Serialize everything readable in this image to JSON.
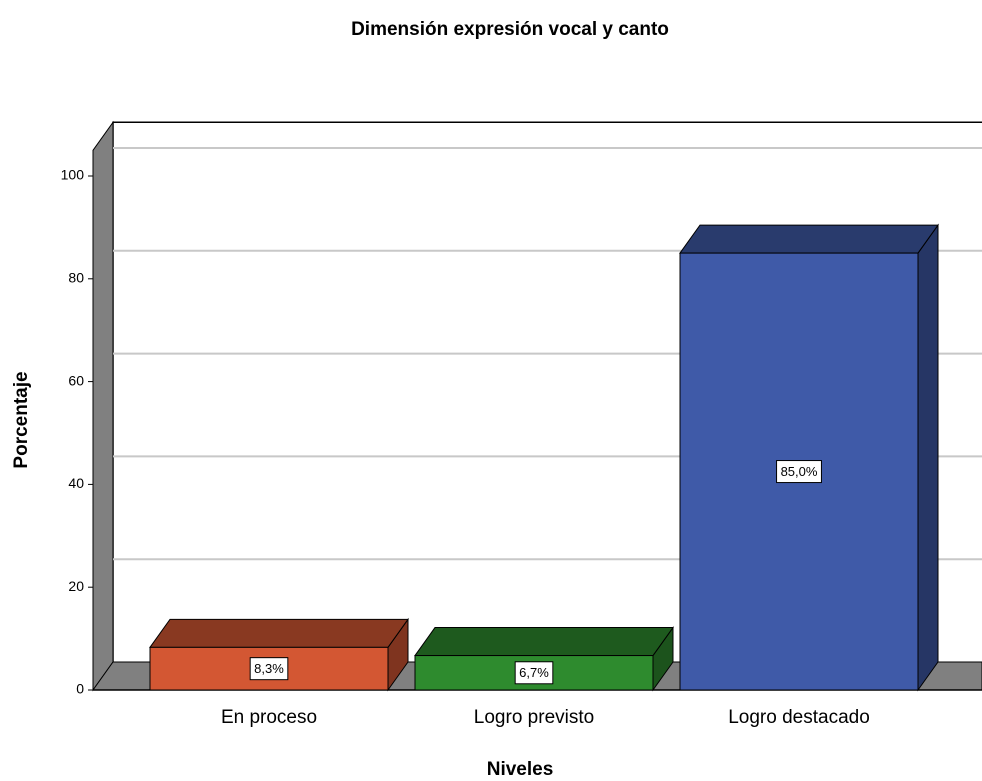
{
  "chart_data": {
    "type": "bar3d",
    "title": "Dimensión expresión vocal y canto",
    "x_label": "Niveles",
    "y_label": "Porcentaje",
    "categories": [
      "En proceso",
      "Logro previsto",
      "Logro destacado"
    ],
    "values": [
      8.3,
      6.7,
      85.0
    ],
    "value_labels": [
      "8,3%",
      "6,7%",
      "85,0%"
    ],
    "colors": [
      "#d35733",
      "#2e8b2e",
      "#3f5aa8"
    ],
    "ylim": [
      0,
      105
    ],
    "yticks": [
      0,
      20,
      40,
      60,
      80,
      100
    ],
    "grid": true
  }
}
